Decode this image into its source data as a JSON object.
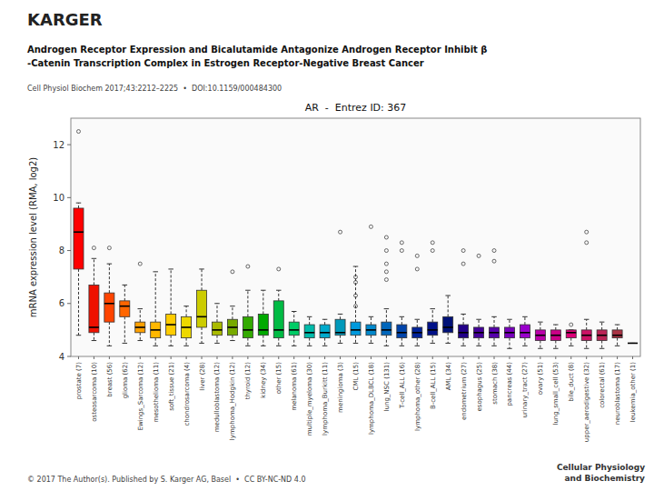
{
  "chart_data": {
    "type": "box",
    "title": "AR  -  Entrez ID: 367",
    "ylabel": "mRNA expression level (RMA, log2)",
    "logo": "KARGER",
    "heading": [
      "Androgen Receptor Expression and Bicalutamide Antagonize Androgen Receptor Inhibit β",
      "-Catenin Transcription Complex in Estrogen Receptor-Negative Breast Cancer"
    ],
    "citation": "Cell Physiol Biochem 2017;43:2212–2225  •  DOI:10.1159/000484300",
    "footer": "© 2017 The Author(s). Published by S. Karger AG, Basel  •  CC BY-NC-ND 4.0",
    "footer_right": "Cellular Physiology\nand Biochemistry",
    "categories": [
      "prostate (7)",
      "osteosarcoma (10)",
      "breast (56)",
      "glioma (62)",
      "Ewings_Sarcoma (12)",
      "mesothelioma (11)",
      "soft_tissue (21)",
      "chondrosarcoma (4)",
      "liver (28)",
      "medulloblastoma (12)",
      "lymphoma_Hodgkin (12)",
      "thyroid (12)",
      "kidney (34)",
      "other (15)",
      "melanoma (61)",
      "multiple_myeloma (30)",
      "lymphoma_Burkitt (11)",
      "meningioma (3)",
      "CML (15)",
      "lymphoma_DLBCL (18)",
      "lung_NSC (131)",
      "T-cell_ALL (16)",
      "lymphoma_other (28)",
      "B-cell_ALL (15)",
      "AML (34)",
      "endometrium (27)",
      "esophagus (25)",
      "stomach (38)",
      "pancreas (44)",
      "urinary_tract (27)",
      "ovary (51)",
      "lung_small_cell (53)",
      "bile_duct (8)",
      "upper_aerodigestive (32)",
      "colorectal (61)",
      "neuroblastoma (17)",
      "leukemia_other (1)"
    ],
    "colors": [
      "#FF0000",
      "#EE1100",
      "#FF4400",
      "#FF6600",
      "#FFA000",
      "#FFB800",
      "#FFCC00",
      "#EED800",
      "#CCCC00",
      "#AABB00",
      "#77AA00",
      "#33AA00",
      "#00AA00",
      "#00BB44",
      "#00CC66",
      "#00BBAA",
      "#00AACC",
      "#0099BB",
      "#0099DD",
      "#0088CC",
      "#0066BB",
      "#0044AA",
      "#002299",
      "#001188",
      "#001177",
      "#220088",
      "#440099",
      "#5500AA",
      "#7700BB",
      "#9900CC",
      "#BB00AA",
      "#CC0088",
      "#DD0077",
      "#CC1166",
      "#BB2255",
      "#AA3344",
      "#993333"
    ],
    "ylim": [
      4,
      13
    ],
    "yticks": [
      4,
      6,
      8,
      10,
      12
    ],
    "grid": false,
    "boxes": [
      {
        "med": 8.7,
        "q1": 7.3,
        "q3": 9.6,
        "whislo": 4.8,
        "whishi": 9.8,
        "fliers": [
          12.5
        ]
      },
      {
        "med": 5.1,
        "q1": 4.9,
        "q3": 6.7,
        "whislo": 4.6,
        "whishi": 7.7,
        "fliers": [
          8.1
        ]
      },
      {
        "med": 6.0,
        "q1": 5.3,
        "q3": 6.4,
        "whislo": 4.4,
        "whishi": 7.5,
        "fliers": [
          8.1
        ]
      },
      {
        "med": 5.9,
        "q1": 5.5,
        "q3": 6.1,
        "whislo": 4.5,
        "whishi": 6.7,
        "fliers": []
      },
      {
        "med": 5.1,
        "q1": 4.9,
        "q3": 5.3,
        "whislo": 4.6,
        "whishi": 5.8,
        "fliers": [
          7.5
        ]
      },
      {
        "med": 5.0,
        "q1": 4.7,
        "q3": 5.3,
        "whislo": 4.4,
        "whishi": 7.2,
        "fliers": []
      },
      {
        "med": 5.2,
        "q1": 4.8,
        "q3": 5.6,
        "whislo": 4.4,
        "whishi": 7.3,
        "fliers": []
      },
      {
        "med": 5.1,
        "q1": 4.7,
        "q3": 5.5,
        "whislo": 4.4,
        "whishi": 5.9,
        "fliers": []
      },
      {
        "med": 5.5,
        "q1": 5.1,
        "q3": 6.5,
        "whislo": 4.5,
        "whishi": 7.3,
        "fliers": []
      },
      {
        "med": 5.0,
        "q1": 4.8,
        "q3": 5.3,
        "whislo": 4.5,
        "whishi": 6.0,
        "fliers": []
      },
      {
        "med": 5.1,
        "q1": 4.8,
        "q3": 5.4,
        "whislo": 4.6,
        "whishi": 5.9,
        "fliers": [
          7.2
        ]
      },
      {
        "med": 5.0,
        "q1": 4.7,
        "q3": 5.5,
        "whislo": 4.4,
        "whishi": 6.5,
        "fliers": [
          7.4
        ]
      },
      {
        "med": 5.0,
        "q1": 4.8,
        "q3": 5.6,
        "whislo": 4.4,
        "whishi": 6.5,
        "fliers": []
      },
      {
        "med": 5.0,
        "q1": 4.7,
        "q3": 6.1,
        "whislo": 4.4,
        "whishi": 6.5,
        "fliers": [
          7.3
        ]
      },
      {
        "med": 5.0,
        "q1": 4.8,
        "q3": 5.3,
        "whislo": 4.4,
        "whishi": 5.7,
        "fliers": []
      },
      {
        "med": 4.9,
        "q1": 4.7,
        "q3": 5.2,
        "whislo": 4.4,
        "whishi": 5.5,
        "fliers": []
      },
      {
        "med": 4.9,
        "q1": 4.7,
        "q3": 5.2,
        "whislo": 4.4,
        "whishi": 5.4,
        "fliers": []
      },
      {
        "med": 4.9,
        "q1": 4.8,
        "q3": 5.4,
        "whislo": 4.5,
        "whishi": 5.6,
        "fliers": [
          8.7
        ]
      },
      {
        "med": 5.0,
        "q1": 4.8,
        "q3": 5.3,
        "whislo": 4.5,
        "whishi": 7.4,
        "fliers": [
          5.9,
          6.3,
          6.8,
          7.0
        ]
      },
      {
        "med": 5.0,
        "q1": 4.8,
        "q3": 5.2,
        "whislo": 4.5,
        "whishi": 5.5,
        "fliers": [
          8.9
        ]
      },
      {
        "med": 5.0,
        "q1": 4.8,
        "q3": 5.3,
        "whislo": 4.4,
        "whishi": 5.8,
        "fliers": [
          8.5,
          8.0,
          7.5,
          7.2,
          6.9
        ]
      },
      {
        "med": 4.9,
        "q1": 4.7,
        "q3": 5.2,
        "whislo": 4.4,
        "whishi": 5.5,
        "fliers": [
          8.3,
          8.0
        ]
      },
      {
        "med": 4.9,
        "q1": 4.7,
        "q3": 5.1,
        "whislo": 4.4,
        "whishi": 5.4,
        "fliers": [
          7.8,
          7.3
        ]
      },
      {
        "med": 5.0,
        "q1": 4.8,
        "q3": 5.3,
        "whislo": 4.5,
        "whishi": 5.8,
        "fliers": [
          8.3,
          8.0
        ]
      },
      {
        "med": 5.1,
        "q1": 4.9,
        "q3": 5.5,
        "whislo": 4.5,
        "whishi": 6.3,
        "fliers": []
      },
      {
        "med": 4.9,
        "q1": 4.7,
        "q3": 5.2,
        "whislo": 4.4,
        "whishi": 5.6,
        "fliers": [
          8.0,
          7.5
        ]
      },
      {
        "med": 4.9,
        "q1": 4.7,
        "q3": 5.1,
        "whislo": 4.4,
        "whishi": 5.4,
        "fliers": [
          7.8
        ]
      },
      {
        "med": 4.9,
        "q1": 4.7,
        "q3": 5.1,
        "whislo": 4.4,
        "whishi": 5.5,
        "fliers": [
          8.0,
          7.6
        ]
      },
      {
        "med": 4.9,
        "q1": 4.7,
        "q3": 5.1,
        "whislo": 4.3,
        "whishi": 5.4,
        "fliers": []
      },
      {
        "med": 4.9,
        "q1": 4.7,
        "q3": 5.2,
        "whislo": 4.4,
        "whishi": 5.5,
        "fliers": []
      },
      {
        "med": 4.8,
        "q1": 4.6,
        "q3": 5.0,
        "whislo": 4.3,
        "whishi": 5.3,
        "fliers": []
      },
      {
        "med": 4.8,
        "q1": 4.6,
        "q3": 5.0,
        "whislo": 4.3,
        "whishi": 5.2,
        "fliers": []
      },
      {
        "med": 4.9,
        "q1": 4.7,
        "q3": 5.0,
        "whislo": 4.4,
        "whishi": 5.0,
        "fliers": [
          5.2
        ]
      },
      {
        "med": 4.8,
        "q1": 4.6,
        "q3": 5.0,
        "whislo": 4.3,
        "whishi": 5.4,
        "fliers": [
          8.7,
          8.3
        ]
      },
      {
        "med": 4.8,
        "q1": 4.6,
        "q3": 5.0,
        "whislo": 4.3,
        "whishi": 5.3,
        "fliers": []
      },
      {
        "med": 4.8,
        "q1": 4.7,
        "q3": 5.0,
        "whislo": 4.4,
        "whishi": 5.2,
        "fliers": []
      },
      {
        "med": 4.5,
        "q1": 4.5,
        "q3": 4.5,
        "whislo": 4.5,
        "whishi": 4.5,
        "fliers": []
      }
    ]
  }
}
